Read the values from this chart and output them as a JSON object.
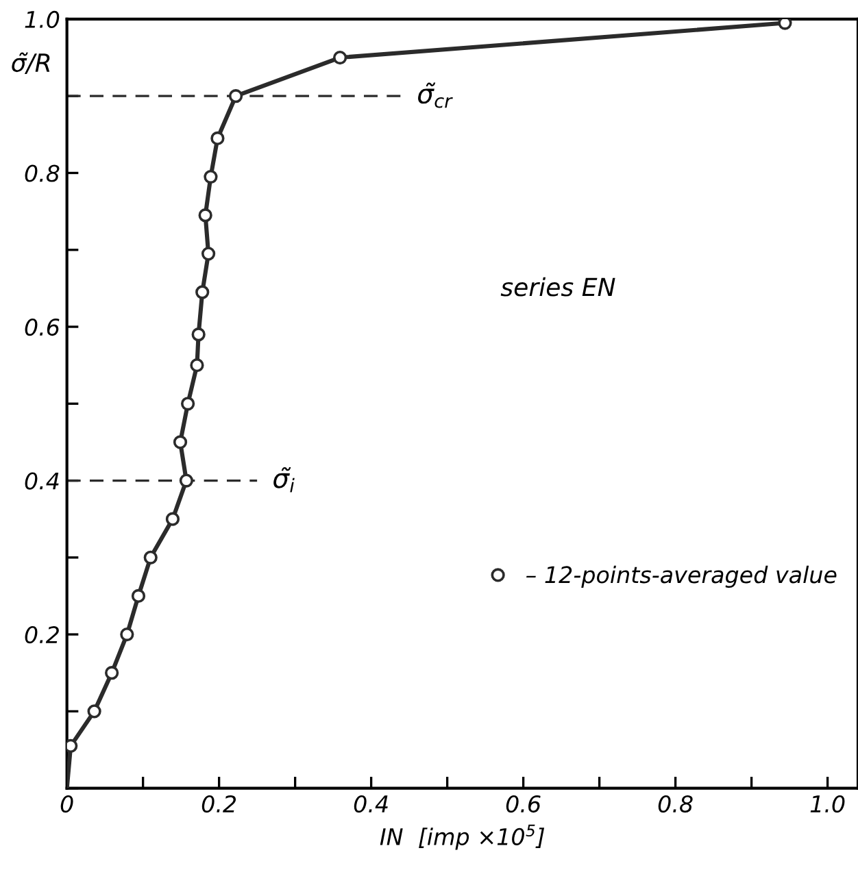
{
  "chart_data": {
    "type": "line",
    "xlabel": "IN  [imp ×10$^{5}$]",
    "ylabel": "σ̃/R",
    "annotations": [
      "series EN"
    ],
    "series": [
      {
        "color": "#2b2b2b",
        "x": [
          0,
          0.005
        ],
        "values": [
          0,
          0.055
        ]
      },
      {
        "name": "– 12-points-averaged value",
        "color": "#2b2b2b",
        "marker": "circle",
        "x": [
          0.005,
          0.036,
          0.059,
          0.079,
          0.094,
          0.11,
          0.139,
          0.157,
          0.149,
          0.159,
          0.171,
          0.173,
          0.178,
          0.186,
          0.182,
          0.189,
          0.198,
          0.222,
          0.359,
          0.944
        ],
        "values": [
          0.055,
          0.1,
          0.15,
          0.2,
          0.25,
          0.3,
          0.35,
          0.4,
          0.45,
          0.5,
          0.55,
          0.59,
          0.645,
          0.695,
          0.745,
          0.795,
          0.845,
          0.9,
          0.95,
          0.995
        ]
      }
    ],
    "ref_lines": [
      {
        "axis": "y",
        "value": 0.9,
        "label": "σ̃$_{cr}$",
        "line_style": "dashed"
      },
      {
        "axis": "y",
        "value": 0.4,
        "label": "σ̃$_{i}$",
        "line_style": "dashed"
      }
    ],
    "xlim": [
      0,
      1.04
    ],
    "ylim": [
      0,
      1.0
    ],
    "xticks": [
      0,
      {
        "value": 0.1,
        "label": null
      },
      0.2,
      {
        "value": 0.3,
        "label": null
      },
      0.4,
      {
        "value": 0.5,
        "label": null
      },
      0.6,
      {
        "value": 0.7,
        "label": null
      },
      0.8,
      {
        "value": 0.9,
        "label": null
      },
      {
        "value": 1.0,
        "label": "1.0"
      }
    ],
    "yticks": [
      {
        "value": 0,
        "label": null
      },
      {
        "value": 0.1,
        "label": null
      },
      0.2,
      {
        "value": 0.3,
        "label": null
      },
      0.4,
      {
        "value": 0.5,
        "label": null
      },
      0.6,
      {
        "value": 0.7,
        "label": null
      },
      0.8,
      {
        "value": 0.9,
        "label": null
      },
      {
        "value": 1.0,
        "label": "1.0"
      }
    ],
    "legend": "center right",
    "grid": false,
    "line_style": "solid"
  }
}
